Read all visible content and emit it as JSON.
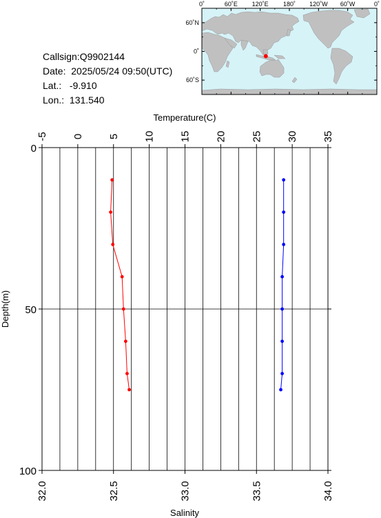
{
  "info": {
    "callsign": "Callsign:Q9902144",
    "date": "Date:  2025/05/24 09:50(UTC)",
    "lat": "Lat.:   -9.910",
    "lon": "Lon.:  131.540"
  },
  "map": {
    "top_ticks": [
      "0˚",
      "60˚E",
      "120˚E",
      "180˚",
      "120˚W",
      "60˚W",
      "0˚"
    ],
    "left_ticks": [
      "60˚N",
      "0˚",
      "60˚S"
    ],
    "marker_lat": -9.91,
    "marker_lon": 131.54,
    "ocean_color": "#d6f3f8",
    "land_color": "#c0c0c0",
    "marker_color": "#ff0000"
  },
  "chart_data": {
    "type": "line",
    "top_axis_label": "Temperature(C)",
    "bottom_axis_label": "Salinity",
    "y_axis_label": "Depth(m)",
    "temperature_range": [
      -5,
      35
    ],
    "temperature_ticks": [
      "-5",
      "0",
      "5",
      "10",
      "15",
      "20",
      "25",
      "30",
      "35"
    ],
    "salinity_range": [
      32.0,
      34.0
    ],
    "salinity_ticks": [
      "32.0",
      "32.5",
      "33.0",
      "33.5",
      "34.0"
    ],
    "depth_range": [
      0,
      100
    ],
    "depth_ticks": [
      "0",
      "50",
      "100"
    ],
    "grid": true,
    "series": [
      {
        "name": "",
        "axis": "temperature",
        "color": "#ff0000",
        "points": [
          [
            4.8,
            10
          ],
          [
            4.6,
            20
          ],
          [
            4.9,
            30
          ],
          [
            6.2,
            40
          ],
          [
            6.4,
            50
          ],
          [
            6.7,
            60
          ],
          [
            6.9,
            70
          ],
          [
            7.2,
            75
          ]
        ]
      },
      {
        "name": "",
        "axis": "salinity",
        "color": "#0000ff",
        "points": [
          [
            33.69,
            10
          ],
          [
            33.69,
            20
          ],
          [
            33.69,
            30
          ],
          [
            33.68,
            40
          ],
          [
            33.68,
            50
          ],
          [
            33.68,
            60
          ],
          [
            33.68,
            70
          ],
          [
            33.67,
            75
          ]
        ]
      }
    ]
  }
}
